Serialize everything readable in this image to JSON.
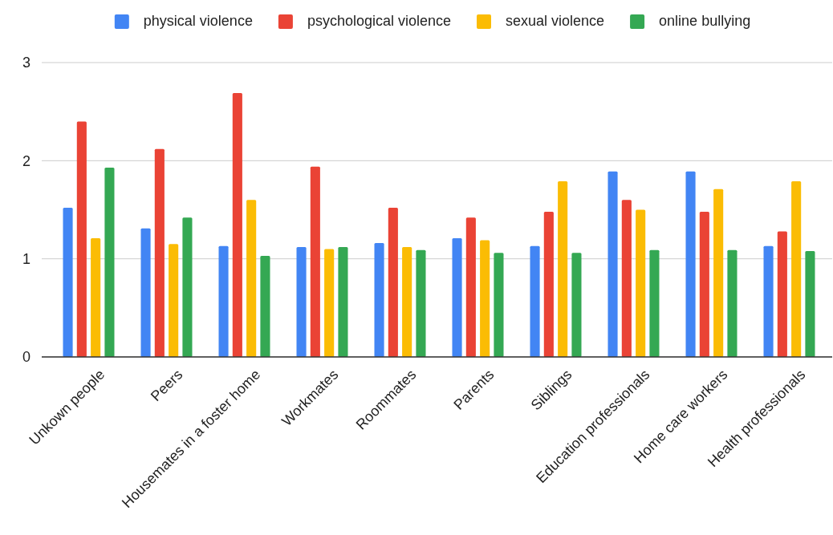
{
  "chart_data": {
    "type": "bar",
    "categories": [
      "Unkown people",
      "Peers",
      "Housemates in a foster home",
      "Workmates",
      "Roommates",
      "Parents",
      "Siblings",
      "Education professionals",
      "Home care workers",
      "Health professionals"
    ],
    "series": [
      {
        "name": "physical violence",
        "color": "#4285f4",
        "values": [
          1.52,
          1.31,
          1.13,
          1.12,
          1.16,
          1.21,
          1.13,
          1.89,
          1.89,
          1.13
        ]
      },
      {
        "name": "psychological violence",
        "color": "#ea4335",
        "values": [
          2.4,
          2.12,
          2.69,
          1.94,
          1.52,
          1.42,
          1.48,
          1.6,
          1.48,
          1.28
        ]
      },
      {
        "name": "sexual violence",
        "color": "#fbbc04",
        "values": [
          1.21,
          1.15,
          1.6,
          1.1,
          1.12,
          1.19,
          1.79,
          1.5,
          1.71,
          1.79
        ]
      },
      {
        "name": "online bullying",
        "color": "#34a853",
        "values": [
          1.93,
          1.42,
          1.03,
          1.12,
          1.09,
          1.06,
          1.06,
          1.09,
          1.09,
          1.08
        ]
      }
    ],
    "ylim": [
      0,
      3
    ],
    "yticks": [
      0,
      1,
      2,
      3
    ],
    "grid": "y",
    "legend": "top"
  }
}
